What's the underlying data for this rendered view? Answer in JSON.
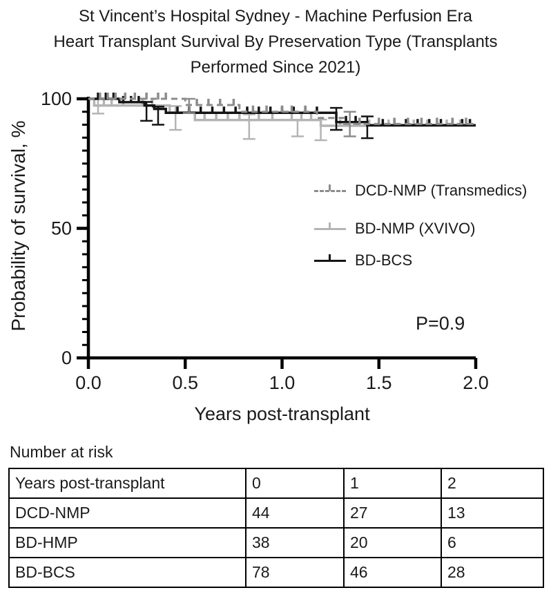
{
  "header": {
    "title_lines": [
      "St Vincent’s Hospital Sydney - Machine Perfusion Era",
      "Heart Transplant Survival By Preservation Type (Transplants",
      "Performed Since 2021)"
    ]
  },
  "chart_data": {
    "type": "line",
    "subtype": "kaplan-meier-step-curves",
    "title": "St Vincent’s Hospital Sydney - Machine Perfusion Era Heart Transplant Survival By Preservation Type (Transplants Performed Since 2021)",
    "xlabel": "Years post-transplant",
    "ylabel": "Probability of survival, %",
    "p_value_text": "P=0.9",
    "xlim": [
      0,
      2
    ],
    "ylim": [
      0,
      100
    ],
    "x_ticks": [
      0,
      0.5,
      1,
      1.5,
      2
    ],
    "x_tick_labels": [
      "0.0",
      "0.5",
      "1.0",
      "1.5",
      "2.0"
    ],
    "y_ticks": [
      0,
      50,
      100
    ],
    "y_tick_labels": [
      "0",
      "50",
      "100"
    ],
    "y_minor_tick_step": 5,
    "grid": false,
    "legend_position": "middle-right",
    "axis_color": "#000000",
    "draw_order": [
      1,
      2,
      0
    ],
    "series": [
      {
        "name": "DCD-NMP (Transmedics)",
        "color": "#8c8c8c",
        "style": "dashed",
        "width": 3,
        "steps": [
          [
            0,
            100
          ],
          [
            0.5,
            97.6
          ],
          [
            0.78,
            95.0
          ],
          [
            1.18,
            92.6
          ],
          [
            1.32,
            90.3
          ],
          [
            2,
            90.3
          ]
        ],
        "censor_times": [
          0.06,
          0.1,
          0.14,
          0.19,
          0.24,
          0.3,
          0.36,
          0.4,
          0.56,
          0.62,
          0.68,
          0.75,
          0.85,
          0.92,
          1.0,
          1.05,
          1.12,
          1.4,
          1.5,
          1.58,
          1.65,
          1.72,
          1.8,
          1.88,
          1.95
        ],
        "error_bars": [
          [
            0.52,
            94.5,
            100
          ],
          [
            1.35,
            85.5,
            95
          ]
        ]
      },
      {
        "name": "BD-NMP (XVIVO)",
        "color": "#b4b4b4",
        "style": "solid",
        "width": 3.5,
        "steps": [
          [
            0,
            100
          ],
          [
            0.03,
            97.4
          ],
          [
            0.42,
            94.7
          ],
          [
            0.55,
            91.8
          ],
          [
            1.2,
            89.6
          ],
          [
            2,
            89.6
          ]
        ],
        "censor_times": [
          0.08,
          0.12,
          0.18,
          0.28,
          0.33,
          0.6,
          0.66,
          0.72,
          0.78,
          0.88,
          0.95,
          1.05,
          1.1,
          1.15,
          1.3,
          1.45,
          1.55,
          1.68,
          1.75,
          1.85,
          1.92
        ],
        "error_bars": [
          [
            0.05,
            94.3,
            100
          ],
          [
            0.45,
            88,
            97.2
          ],
          [
            0.83,
            84.5,
            94
          ],
          [
            1.08,
            85.5,
            91.8
          ],
          [
            1.2,
            84,
            92
          ]
        ]
      },
      {
        "name": "BD-BCS",
        "color": "#141414",
        "style": "solid",
        "width": 3.5,
        "steps": [
          [
            0,
            100
          ],
          [
            0.16,
            98.7
          ],
          [
            0.29,
            97.4
          ],
          [
            0.34,
            96.1
          ],
          [
            0.4,
            94.6
          ],
          [
            1.28,
            91.0
          ],
          [
            1.44,
            89.8
          ],
          [
            2,
            89.8
          ]
        ],
        "censor_times": [
          0.05,
          0.09,
          0.13,
          0.18,
          0.22,
          0.26,
          0.46,
          0.52,
          0.58,
          0.64,
          0.7,
          0.76,
          0.82,
          0.88,
          0.94,
          1.0,
          1.06,
          1.12,
          1.18,
          1.33,
          1.38,
          1.52,
          1.58,
          1.64,
          1.7,
          1.76,
          1.82,
          1.88,
          1.93,
          1.97
        ],
        "error_bars": [
          [
            0.3,
            91.5,
            98.8
          ],
          [
            0.36,
            90,
            97
          ],
          [
            1.28,
            88,
            96.5
          ],
          [
            1.44,
            84.8,
            93.2
          ]
        ]
      }
    ]
  },
  "risk_table": {
    "caption": "Number at risk",
    "header": [
      "Years post-transplant",
      "0",
      "1",
      "2"
    ],
    "rows": [
      {
        "label": "DCD-NMP",
        "values": [
          "44",
          "27",
          "13"
        ]
      },
      {
        "label": "BD-HMP",
        "values": [
          "38",
          "20",
          "6"
        ]
      },
      {
        "label": "BD-BCS",
        "values": [
          "78",
          "46",
          "28"
        ]
      }
    ]
  }
}
